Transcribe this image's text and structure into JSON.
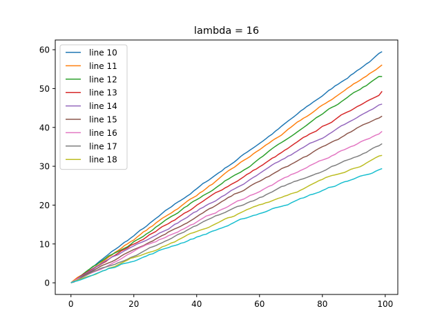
{
  "chart_data": {
    "type": "line",
    "title": "lambda = 16",
    "xlabel": "",
    "ylabel": "",
    "xlim": [
      -5,
      104
    ],
    "ylim": [
      -3,
      62.5
    ],
    "xticks": [
      0,
      20,
      40,
      60,
      80,
      100
    ],
    "yticks": [
      0,
      10,
      20,
      30,
      40,
      50,
      60
    ],
    "grid": false,
    "legend_position": "upper-left",
    "x_range": [
      0,
      99
    ],
    "series": [
      {
        "name": "line 10",
        "color": "#1f77b4",
        "slope": 0.601,
        "final": 59.5
      },
      {
        "name": "line 11",
        "color": "#ff7f0e",
        "slope": 0.567,
        "final": 56.1
      },
      {
        "name": "line 12",
        "color": "#2ca02c",
        "slope": 0.537,
        "final": 53.1
      },
      {
        "name": "line 13",
        "color": "#d62728",
        "slope": 0.498,
        "final": 49.3
      },
      {
        "name": "line 14",
        "color": "#9467bd",
        "slope": 0.465,
        "final": 46.0
      },
      {
        "name": "line 15",
        "color": "#8c564b",
        "slope": 0.433,
        "final": 42.9
      },
      {
        "name": "line 16",
        "color": "#e377c2",
        "slope": 0.394,
        "final": 39.0
      },
      {
        "name": "line 17",
        "color": "#7f7f7f",
        "slope": 0.362,
        "final": 35.8
      },
      {
        "name": "line 18",
        "color": "#bcbd22",
        "slope": 0.331,
        "final": 32.8
      },
      {
        "name": "",
        "color": "#17becf",
        "slope": 0.297,
        "final": 29.4
      }
    ]
  }
}
